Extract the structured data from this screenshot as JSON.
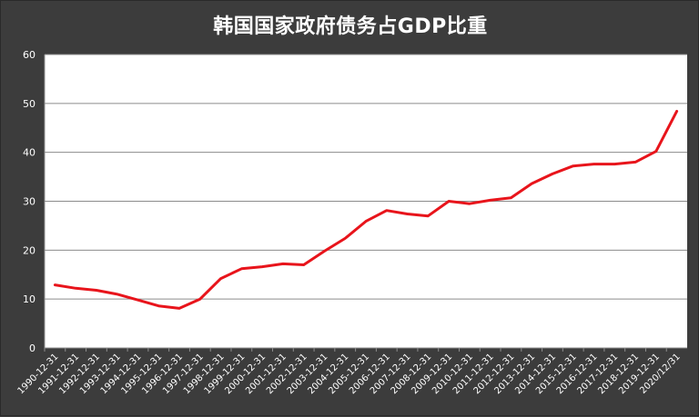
{
  "chart_data": {
    "type": "line",
    "title": "韩国国家政府债务占GDP比重",
    "xlabel": "",
    "ylabel": "",
    "ylim": [
      0,
      60
    ],
    "yticks": [
      0,
      10,
      20,
      30,
      40,
      50,
      60
    ],
    "grid": true,
    "legend": "none",
    "line_color": "#e8141b",
    "categories": [
      "1990-12-31",
      "1991-12-31",
      "1992-12-31",
      "1993-12-31",
      "1994-12-31",
      "1995-12-31",
      "1996-12-31",
      "1997-12-31",
      "1998-12-31",
      "1999-12-31",
      "2000-12-31",
      "2001-12-31",
      "2002-12-31",
      "2003-12-31",
      "2004-12-31",
      "2005-12-31",
      "2006-12-31",
      "2007-12-31",
      "2008-12-31",
      "2009-12-31",
      "2010-12-31",
      "2011-12-31",
      "2012-12-31",
      "2013-12-31",
      "2014-12-31",
      "2015-12-31",
      "2016-12-31",
      "2017-12-31",
      "2018-12-31",
      "2019-12-31",
      "2020/12/31"
    ],
    "values": [
      12.9,
      12.2,
      11.8,
      11.0,
      9.8,
      8.6,
      8.1,
      10.0,
      14.2,
      16.2,
      16.6,
      17.2,
      17.0,
      19.8,
      22.4,
      25.9,
      28.1,
      27.4,
      27.0,
      30.0,
      29.5,
      30.2,
      30.7,
      33.6,
      35.6,
      37.2,
      37.6,
      37.6,
      38.0,
      40.2,
      48.4
    ]
  }
}
